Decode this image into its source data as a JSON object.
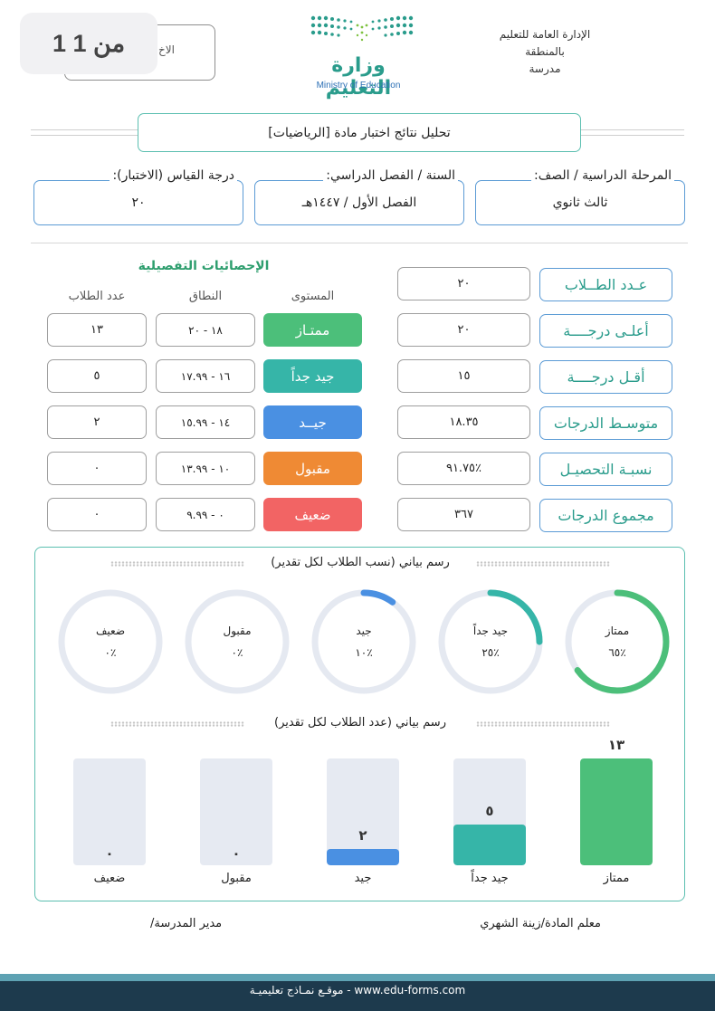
{
  "page_indicator": "1 من 1",
  "header": {
    "box_label": "الاخ",
    "ministry_ar": "وزارة التعليم",
    "ministry_en": "Ministry of Education",
    "admin_line1": "الإدارة العامة للتعليم",
    "admin_line2": "بالمنطقة",
    "admin_line3": "مدرسة"
  },
  "title": "تحليل نتائج اختبار مادة [الرياضيات]",
  "info": {
    "stage_label": "المرحلة الدراسية / الصف:",
    "stage_value": "ثالث ثانوي",
    "year_label": "السنة / الفصل الدراسي:",
    "year_value": "الفصل الأول / ١٤٤٧هـ",
    "max_label": "درجة القياس (الاختبار):",
    "max_value": "٢٠"
  },
  "stats": [
    {
      "label": "عـدد الطــلاب",
      "value": "٢٠"
    },
    {
      "label": "أعلـى درجــــة",
      "value": "٢٠"
    },
    {
      "label": "أقـل درجــــة",
      "value": "١٥"
    },
    {
      "label": "متوسـط الدرجات",
      "value": "١٨.٣٥"
    },
    {
      "label": "نسبـة التحصيـل",
      "value": "٩١.٧٥٪"
    },
    {
      "label": "مجموع الدرجات",
      "value": "٣٦٧"
    }
  ],
  "details": {
    "title": "الإحصائيات التفصيلية",
    "col_level": "المستوى",
    "col_range": "النطاق",
    "col_count": "عدد الطلاب",
    "rows": [
      {
        "level": "ممتـاز",
        "range": "١٨ - ٢٠",
        "count": "١٣",
        "color": "#4cbf7a"
      },
      {
        "level": "جيد جداً",
        "range": "١٦ - ١٧.٩٩",
        "count": "٥",
        "color": "#36b5a8"
      },
      {
        "level": "جيــد",
        "range": "١٤ - ١٥.٩٩",
        "count": "٢",
        "color": "#4a90e2"
      },
      {
        "level": "مقبول",
        "range": "١٠ - ١٣.٩٩",
        "count": "٠",
        "color": "#ef8a34"
      },
      {
        "level": "ضعيف",
        "range": "٠ - ٩.٩٩",
        "count": "٠",
        "color": "#f26464"
      }
    ]
  },
  "chart_data": [
    {
      "type": "pie",
      "title": "رسم بياني (نسب الطلاب لكل تقدير)",
      "categories": [
        "ممتاز",
        "جيد جداً",
        "جيد",
        "مقبول",
        "ضعيف"
      ],
      "values": [
        65,
        25,
        10,
        0,
        0
      ],
      "labels": [
        "٪٦٥",
        "٪٢٥",
        "٪١٠",
        "٪٠",
        "٪٠"
      ],
      "colors": [
        "#4cbf7a",
        "#36b5a8",
        "#4a90e2",
        "#ef8a34",
        "#f26464"
      ]
    },
    {
      "type": "bar",
      "title": "رسم بياني (عدد الطلاب لكل تقدير)",
      "categories": [
        "ممتاز",
        "جيد جداً",
        "جيد",
        "مقبول",
        "ضعيف"
      ],
      "values": [
        13,
        5,
        2,
        0,
        0
      ],
      "labels": [
        "١٣",
        "٥",
        "٢",
        "٠",
        "٠"
      ],
      "colors": [
        "#4cbf7a",
        "#36b5a8",
        "#4a90e2",
        "#ef8a34",
        "#f26464"
      ],
      "ylim": [
        0,
        13
      ]
    }
  ],
  "signatures": {
    "teacher": "معلم المادة/زينة الشهري",
    "principal": "مدير المدرسة/"
  },
  "footer": "موقـع نمـاذج تعليميـة - www.edu-forms.com"
}
